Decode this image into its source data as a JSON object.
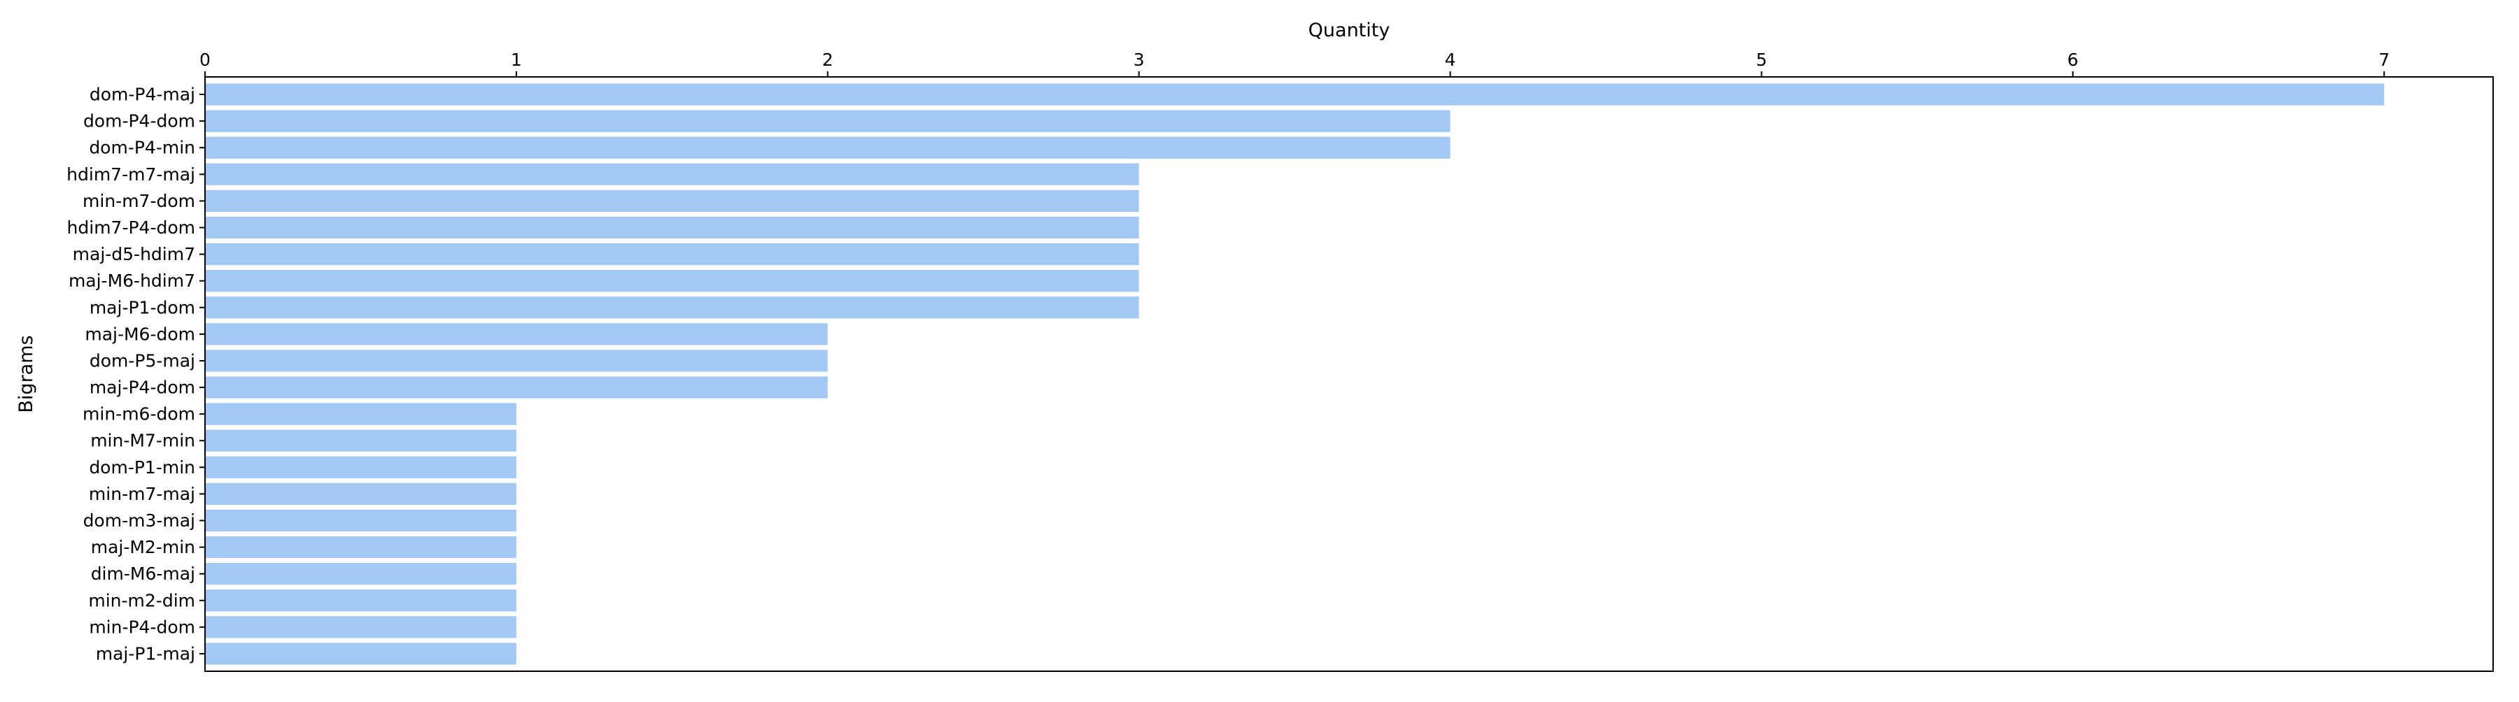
{
  "chart_data": {
    "type": "bar",
    "orientation": "horizontal",
    "xlabel": "Quantity",
    "ylabel": "Bigrams",
    "xlim": [
      0,
      7.35
    ],
    "xticks": [
      0,
      1,
      2,
      3,
      4,
      5,
      6,
      7
    ],
    "x_axis_position": "top",
    "grid": false,
    "legend": "none",
    "colors": {
      "bar": "#a1c9f4",
      "axis": "#000000",
      "background": "#ffffff"
    },
    "categories": [
      "dom-P4-maj",
      "dom-P4-dom",
      "dom-P4-min",
      "hdim7-m7-maj",
      "min-m7-dom",
      "hdim7-P4-dom",
      "maj-d5-hdim7",
      "maj-M6-hdim7",
      "maj-P1-dom",
      "maj-M6-dom",
      "dom-P5-maj",
      "maj-P4-dom",
      "min-m6-dom",
      "min-M7-min",
      "dom-P1-min",
      "min-m7-maj",
      "dom-m3-maj",
      "maj-M2-min",
      "dim-M6-maj",
      "min-m2-dim",
      "min-P4-dom",
      "maj-P1-maj"
    ],
    "values": [
      7,
      4,
      4,
      3,
      3,
      3,
      3,
      3,
      3,
      2,
      2,
      2,
      1,
      1,
      1,
      1,
      1,
      1,
      1,
      1,
      1,
      1
    ]
  }
}
